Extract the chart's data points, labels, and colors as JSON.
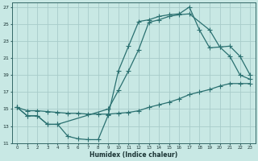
{
  "xlabel": "Humidex (Indice chaleur)",
  "xlim": [
    -0.5,
    23.5
  ],
  "ylim": [
    11,
    27.5
  ],
  "yticks": [
    11,
    13,
    15,
    17,
    19,
    21,
    23,
    25,
    27
  ],
  "xticks": [
    0,
    1,
    2,
    3,
    4,
    5,
    6,
    7,
    8,
    9,
    10,
    11,
    12,
    13,
    14,
    15,
    16,
    17,
    18,
    19,
    20,
    21,
    22,
    23
  ],
  "bg_color": "#c8e8e4",
  "grid_color": "#a8ccca",
  "line_color": "#2a7070",
  "line1_x": [
    0,
    1,
    2,
    3,
    4,
    5,
    6,
    7,
    8,
    9,
    10,
    11,
    12,
    13,
    14,
    15,
    16,
    17,
    18,
    19,
    20,
    21,
    22,
    23
  ],
  "line1_y": [
    15.2,
    14.2,
    14.2,
    13.2,
    13.2,
    11.8,
    11.5,
    11.4,
    11.4,
    14.3,
    19.5,
    22.4,
    25.3,
    25.5,
    25.9,
    26.1,
    26.2,
    27.0,
    24.3,
    22.2,
    22.3,
    21.2,
    19.0,
    18.5
  ],
  "line2_x": [
    0,
    1,
    2,
    3,
    4,
    9,
    10,
    11,
    12,
    13,
    14,
    15,
    16,
    17,
    19,
    20,
    21,
    22,
    23
  ],
  "line2_y": [
    15.2,
    14.2,
    14.2,
    13.2,
    13.2,
    15.0,
    17.2,
    19.5,
    22.0,
    25.2,
    25.5,
    25.9,
    26.1,
    26.2,
    24.3,
    22.3,
    22.4,
    21.2,
    19.0
  ],
  "line3_x": [
    0,
    1,
    2,
    3,
    4,
    5,
    6,
    7,
    8,
    9,
    10,
    11,
    12,
    13,
    14,
    15,
    16,
    17,
    18,
    19,
    20,
    21,
    22,
    23
  ],
  "line3_y": [
    15.2,
    14.8,
    14.8,
    14.7,
    14.6,
    14.5,
    14.5,
    14.4,
    14.4,
    14.4,
    14.5,
    14.6,
    14.8,
    15.2,
    15.5,
    15.8,
    16.2,
    16.7,
    17.0,
    17.3,
    17.7,
    18.0,
    18.0,
    18.0
  ]
}
